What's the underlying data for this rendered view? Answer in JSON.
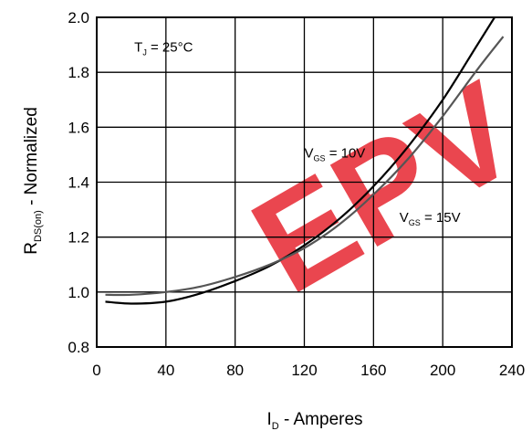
{
  "chart_data": {
    "type": "line",
    "title": "",
    "xlabel": {
      "main": "I",
      "sub": "D",
      "rest": " - Amperes"
    },
    "ylabel": {
      "main": "R",
      "sub": "DS(on)",
      "rest": " - Normalized"
    },
    "xlim": [
      0,
      240
    ],
    "ylim": [
      0.8,
      2.0
    ],
    "x_ticks": [
      0,
      40,
      80,
      120,
      160,
      200,
      240
    ],
    "y_ticks": [
      0.8,
      1.0,
      1.2,
      1.4,
      1.6,
      1.8,
      2.0
    ],
    "x_tick_labels": [
      "0",
      "40",
      "80",
      "120",
      "160",
      "200",
      "240"
    ],
    "y_tick_labels": [
      "0.8",
      "1.0",
      "1.2",
      "1.4",
      "1.6",
      "1.8",
      "2.0"
    ],
    "grid": true,
    "annotations": [
      {
        "id": "tj",
        "main": "T",
        "sub": "J",
        "rest": " = 25°C",
        "at": [
          8,
          1.875
        ]
      },
      {
        "id": "vgs10",
        "main": "V",
        "sub": "GS",
        "rest": " = 10V",
        "at": [
          120,
          1.49
        ]
      },
      {
        "id": "vgs15",
        "main": "V",
        "sub": "GS",
        "rest": " = 15V",
        "at": [
          175,
          1.255
        ]
      }
    ],
    "series": [
      {
        "label": "VGS = 10V",
        "color": "#000000",
        "x": [
          5,
          20,
          40,
          60,
          80,
          100,
          120,
          140,
          160,
          180,
          200,
          220,
          230
        ],
        "y": [
          0.965,
          0.958,
          0.965,
          0.995,
          1.04,
          1.095,
          1.17,
          1.265,
          1.385,
          1.53,
          1.7,
          1.9,
          2.0
        ]
      },
      {
        "label": "VGS = 15V",
        "color": "#555555",
        "x": [
          5,
          20,
          40,
          60,
          80,
          100,
          120,
          140,
          160,
          180,
          200,
          220,
          235
        ],
        "y": [
          0.99,
          0.99,
          1.0,
          1.02,
          1.055,
          1.1,
          1.16,
          1.245,
          1.355,
          1.485,
          1.64,
          1.81,
          1.93
        ]
      }
    ]
  },
  "watermark": {
    "text": "EPV",
    "color": "#e8323c"
  }
}
